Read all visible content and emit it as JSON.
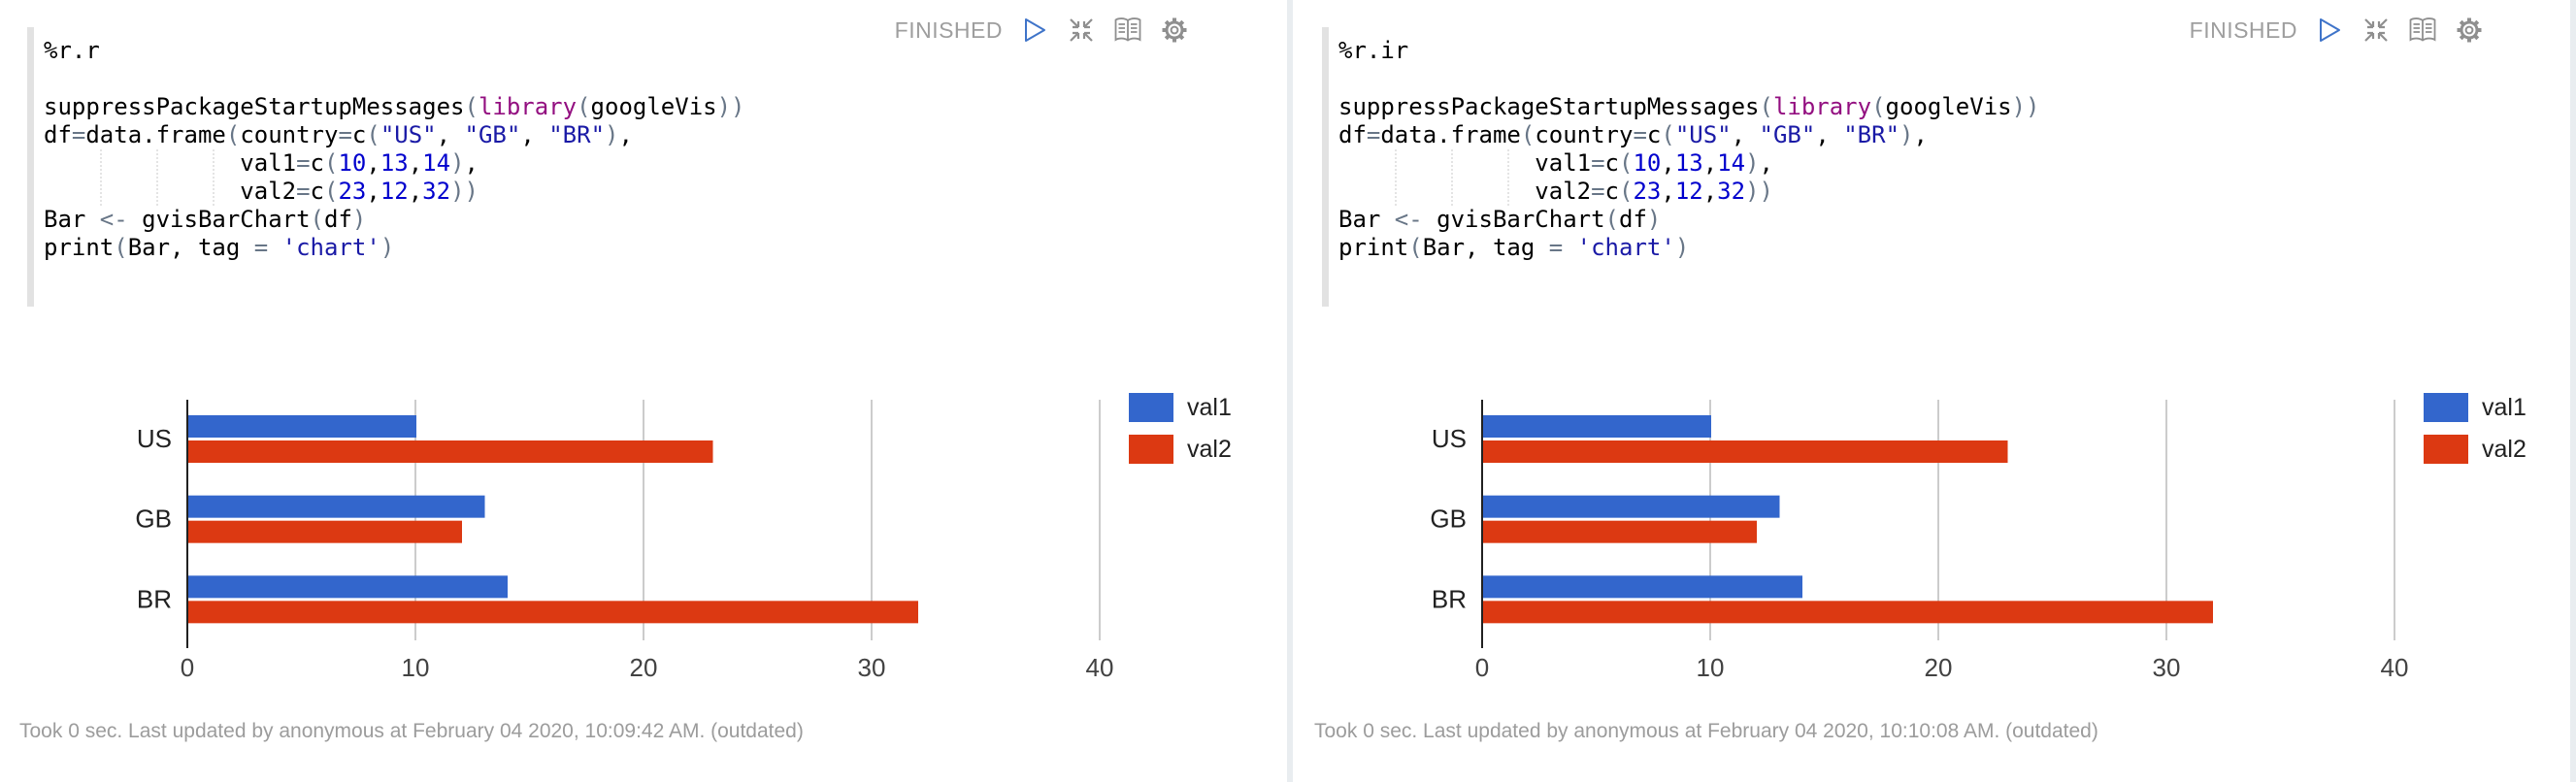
{
  "icons": [
    "run-icon",
    "collapse-icon",
    "book-icon",
    "gear-icon"
  ],
  "colors": {
    "bar_blue": "#3366CC",
    "bar_red": "#DC3912",
    "code_keyword": "#930F80",
    "code_string": "#1A1AA6",
    "code_number": "#0000CD",
    "code_operator": "#687687",
    "status_gray": "#9e9e9e",
    "run_icon_blue": "#3F74C9"
  },
  "paragraphs": [
    {
      "status": "FINISHED",
      "footer": "Took 0 sec. Last updated by anonymous at February 04 2020, 10:09:42 AM. (outdated)",
      "code": {
        "interpreter": "%r.r",
        "lines": [
          [
            [
              "t",
              "%r.r"
            ]
          ],
          [],
          [
            [
              "t",
              "suppressPackageStartupMessages"
            ],
            [
              "p",
              "("
            ],
            [
              "k",
              "library"
            ],
            [
              "p",
              "("
            ],
            [
              "t",
              "googleVis"
            ],
            [
              "p",
              "))"
            ]
          ],
          [
            [
              "t",
              "df"
            ],
            [
              "p",
              "="
            ],
            [
              "t",
              "data.frame"
            ],
            [
              "p",
              "("
            ],
            [
              "t",
              "country"
            ],
            [
              "p",
              "="
            ],
            [
              "t",
              "c"
            ],
            [
              "p",
              "("
            ],
            [
              "s",
              "\"US\""
            ],
            [
              "t",
              ", "
            ],
            [
              "s",
              "\"GB\""
            ],
            [
              "t",
              ", "
            ],
            [
              "s",
              "\"BR\""
            ],
            [
              "p",
              ")"
            ],
            [
              "t",
              ","
            ]
          ],
          [
            [
              "t",
              "              val1"
            ],
            [
              "p",
              "="
            ],
            [
              "t",
              "c"
            ],
            [
              "p",
              "("
            ],
            [
              "n",
              "10"
            ],
            [
              "t",
              ","
            ],
            [
              "n",
              "13"
            ],
            [
              "t",
              ","
            ],
            [
              "n",
              "14"
            ],
            [
              "p",
              ")"
            ],
            [
              "t",
              ","
            ]
          ],
          [
            [
              "t",
              "              val2"
            ],
            [
              "p",
              "="
            ],
            [
              "t",
              "c"
            ],
            [
              "p",
              "("
            ],
            [
              "n",
              "23"
            ],
            [
              "t",
              ","
            ],
            [
              "n",
              "12"
            ],
            [
              "t",
              ","
            ],
            [
              "n",
              "32"
            ],
            [
              "p",
              "))"
            ]
          ],
          [
            [
              "t",
              "Bar "
            ],
            [
              "p",
              "<-"
            ],
            [
              "t",
              " gvisBarChart"
            ],
            [
              "p",
              "("
            ],
            [
              "t",
              "df"
            ],
            [
              "p",
              ")"
            ]
          ],
          [
            [
              "t",
              "print"
            ],
            [
              "p",
              "("
            ],
            [
              "t",
              "Bar, tag "
            ],
            [
              "p",
              "="
            ],
            [
              "t",
              " "
            ],
            [
              "s",
              "'chart'"
            ],
            [
              "p",
              ")"
            ]
          ]
        ]
      },
      "chart_data": {
        "type": "bar",
        "orientation": "horizontal",
        "categories": [
          "US",
          "GB",
          "BR"
        ],
        "series": [
          {
            "name": "val1",
            "color": "#3366CC",
            "values": [
              10,
              13,
              14
            ]
          },
          {
            "name": "val2",
            "color": "#DC3912",
            "values": [
              23,
              12,
              32
            ]
          }
        ],
        "xlim": [
          0,
          40
        ],
        "xticks": [
          0,
          10,
          20,
          30,
          40
        ],
        "grid": true,
        "legend_position": "right",
        "title": "",
        "xlabel": "",
        "ylabel": ""
      }
    },
    {
      "status": "FINISHED",
      "footer": "Took 0 sec. Last updated by anonymous at February 04 2020, 10:10:08 AM. (outdated)",
      "code": {
        "interpreter": "%r.ir",
        "lines": [
          [
            [
              "t",
              "%r.ir"
            ]
          ],
          [],
          [
            [
              "t",
              "suppressPackageStartupMessages"
            ],
            [
              "p",
              "("
            ],
            [
              "k",
              "library"
            ],
            [
              "p",
              "("
            ],
            [
              "t",
              "googleVis"
            ],
            [
              "p",
              "))"
            ]
          ],
          [
            [
              "t",
              "df"
            ],
            [
              "p",
              "="
            ],
            [
              "t",
              "data.frame"
            ],
            [
              "p",
              "("
            ],
            [
              "t",
              "country"
            ],
            [
              "p",
              "="
            ],
            [
              "t",
              "c"
            ],
            [
              "p",
              "("
            ],
            [
              "s",
              "\"US\""
            ],
            [
              "t",
              ", "
            ],
            [
              "s",
              "\"GB\""
            ],
            [
              "t",
              ", "
            ],
            [
              "s",
              "\"BR\""
            ],
            [
              "p",
              ")"
            ],
            [
              "t",
              ","
            ]
          ],
          [
            [
              "t",
              "              val1"
            ],
            [
              "p",
              "="
            ],
            [
              "t",
              "c"
            ],
            [
              "p",
              "("
            ],
            [
              "n",
              "10"
            ],
            [
              "t",
              ","
            ],
            [
              "n",
              "13"
            ],
            [
              "t",
              ","
            ],
            [
              "n",
              "14"
            ],
            [
              "p",
              ")"
            ],
            [
              "t",
              ","
            ]
          ],
          [
            [
              "t",
              "              val2"
            ],
            [
              "p",
              "="
            ],
            [
              "t",
              "c"
            ],
            [
              "p",
              "("
            ],
            [
              "n",
              "23"
            ],
            [
              "t",
              ","
            ],
            [
              "n",
              "12"
            ],
            [
              "t",
              ","
            ],
            [
              "n",
              "32"
            ],
            [
              "p",
              "))"
            ]
          ],
          [
            [
              "t",
              "Bar "
            ],
            [
              "p",
              "<-"
            ],
            [
              "t",
              " gvisBarChart"
            ],
            [
              "p",
              "("
            ],
            [
              "t",
              "df"
            ],
            [
              "p",
              ")"
            ]
          ],
          [
            [
              "t",
              "print"
            ],
            [
              "p",
              "("
            ],
            [
              "t",
              "Bar, tag "
            ],
            [
              "p",
              "="
            ],
            [
              "t",
              " "
            ],
            [
              "s",
              "'chart'"
            ],
            [
              "p",
              ")"
            ]
          ]
        ]
      },
      "chart_data": {
        "type": "bar",
        "orientation": "horizontal",
        "categories": [
          "US",
          "GB",
          "BR"
        ],
        "series": [
          {
            "name": "val1",
            "color": "#3366CC",
            "values": [
              10,
              13,
              14
            ]
          },
          {
            "name": "val2",
            "color": "#DC3912",
            "values": [
              23,
              12,
              32
            ]
          }
        ],
        "xlim": [
          0,
          40
        ],
        "xticks": [
          0,
          10,
          20,
          30,
          40
        ],
        "grid": true,
        "legend_position": "right",
        "title": "",
        "xlabel": "",
        "ylabel": ""
      }
    }
  ]
}
